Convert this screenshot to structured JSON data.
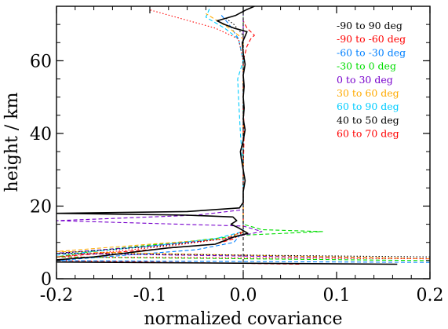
{
  "chart_data": {
    "type": "line",
    "title": "",
    "xlabel": "normalized covariance",
    "ylabel": "height / km",
    "xlim": [
      -0.2,
      0.2
    ],
    "ylim": [
      0,
      75
    ],
    "xticks": [
      -0.2,
      -0.1,
      0.0,
      0.1,
      0.2
    ],
    "xtick_labels": [
      "-0.2",
      "-0.1",
      "0.0",
      "0.1",
      "0.2"
    ],
    "yticks": [
      0,
      20,
      40,
      60
    ],
    "ytick_labels": [
      "0",
      "20",
      "40",
      "60"
    ],
    "grid": false,
    "legend_position": "top-right",
    "reference_line": {
      "x": 0.0,
      "style": "dashed",
      "color": "#000000"
    },
    "series": [
      {
        "name": "-90 to 90 deg",
        "color": "#000000",
        "style": "solid",
        "points": [
          [
            0.165,
            4.0
          ],
          [
            -0.2,
            4.6
          ],
          [
            -0.2,
            5.2
          ],
          [
            -0.16,
            6.0
          ],
          [
            -0.08,
            8.5
          ],
          [
            -0.03,
            9.5
          ],
          [
            -0.01,
            11.5
          ],
          [
            0.005,
            12.5
          ],
          [
            -0.005,
            14.0
          ],
          [
            -0.013,
            15.0
          ],
          [
            -0.007,
            16.0
          ],
          [
            -0.011,
            17.0
          ],
          [
            -0.06,
            17.5
          ],
          [
            -0.2,
            18.0
          ],
          [
            -0.06,
            18.5
          ],
          [
            -0.004,
            19.5
          ],
          [
            0.0,
            21.0
          ],
          [
            0.0,
            24.0
          ],
          [
            0.002,
            27.0
          ],
          [
            0.0,
            30.0
          ],
          [
            -0.002,
            33.0
          ],
          [
            -0.003,
            35.0
          ],
          [
            0.0,
            38.0
          ],
          [
            0.002,
            41.0
          ],
          [
            0.0,
            44.0
          ],
          [
            0.001,
            47.0
          ],
          [
            0.0,
            50.0
          ],
          [
            0.001,
            53.0
          ],
          [
            0.0,
            56.0
          ],
          [
            0.002,
            59.0
          ],
          [
            0.0,
            62.0
          ],
          [
            -0.001,
            65.0
          ],
          [
            0.004,
            68.0
          ],
          [
            -0.01,
            69.0
          ],
          [
            -0.02,
            70.0
          ],
          [
            -0.028,
            71.0
          ],
          [
            -0.008,
            72.5
          ],
          [
            0.003,
            74.0
          ],
          [
            0.012,
            75.0
          ]
        ]
      },
      {
        "name": "-90 to -60 deg",
        "color": "#ff0000",
        "style": "dashed",
        "points": [
          [
            0.06,
            4.0
          ],
          [
            -0.2,
            5.0
          ],
          [
            -0.2,
            6.0
          ],
          [
            -0.1,
            8.0
          ],
          [
            -0.03,
            9.5
          ],
          [
            -0.01,
            11.0
          ],
          [
            0.0,
            13.0
          ],
          [
            0.0,
            16.0
          ],
          [
            0.0,
            20.0
          ],
          [
            0.0,
            30.0
          ],
          [
            0.001,
            40.0
          ],
          [
            0.0,
            50.0
          ],
          [
            0.0,
            60.0
          ],
          [
            0.004,
            64.0
          ],
          [
            0.008,
            66.0
          ],
          [
            0.012,
            67.0
          ],
          [
            0.004,
            69.0
          ],
          [
            0.0,
            71.0
          ]
        ]
      },
      {
        "name": "-60 to -30 deg",
        "color": "#0080ff",
        "style": "dashed",
        "points": [
          [
            0.2,
            4.5
          ],
          [
            -0.2,
            5.0
          ],
          [
            -0.05,
            8.0
          ],
          [
            -0.01,
            10.0
          ],
          [
            0.0,
            13.0
          ],
          [
            0.0,
            20.0
          ],
          [
            0.0,
            30.0
          ],
          [
            0.0,
            40.0
          ],
          [
            0.0,
            50.0
          ],
          [
            0.0,
            60.0
          ],
          [
            -0.005,
            66.0
          ],
          [
            -0.015,
            70.0
          ],
          [
            -0.025,
            73.0
          ]
        ]
      },
      {
        "name": "-30 to 0 deg",
        "color": "#00dd00",
        "style": "dashed",
        "points": [
          [
            0.2,
            5.0
          ],
          [
            -0.2,
            6.0
          ],
          [
            -0.15,
            8.0
          ],
          [
            -0.05,
            10.5
          ],
          [
            0.0,
            12.0
          ],
          [
            0.085,
            13.0
          ],
          [
            0.02,
            13.5
          ],
          [
            0.0,
            15.0
          ],
          [
            0.0,
            20.0
          ],
          [
            0.0,
            30.0
          ],
          [
            0.0,
            40.0
          ],
          [
            0.0,
            50.0
          ],
          [
            0.0,
            60.0
          ],
          [
            0.0,
            70.0
          ],
          [
            0.0,
            75.0
          ]
        ]
      },
      {
        "name": "0 to 30 deg",
        "color": "#7700cc",
        "style": "dashed",
        "points": [
          [
            0.2,
            5.5
          ],
          [
            -0.2,
            7.0
          ],
          [
            -0.1,
            9.0
          ],
          [
            -0.02,
            11.0
          ],
          [
            0.02,
            13.0
          ],
          [
            0.0,
            14.5
          ],
          [
            -0.2,
            16.0
          ],
          [
            -0.05,
            17.5
          ],
          [
            0.0,
            19.0
          ],
          [
            0.0,
            30.0
          ],
          [
            0.0,
            40.0
          ],
          [
            0.0,
            50.0
          ],
          [
            0.0,
            60.0
          ],
          [
            0.0,
            70.0
          ],
          [
            0.0,
            75.0
          ]
        ]
      },
      {
        "name": "30 to 60 deg",
        "color": "#ffaa00",
        "style": "dashed",
        "points": [
          [
            0.2,
            5.5
          ],
          [
            -0.2,
            7.5
          ],
          [
            -0.1,
            9.5
          ],
          [
            -0.02,
            11.0
          ],
          [
            0.0,
            13.0
          ],
          [
            0.0,
            20.0
          ],
          [
            0.0,
            30.0
          ],
          [
            0.0,
            40.0
          ],
          [
            0.0,
            50.0
          ],
          [
            0.0,
            60.0
          ],
          [
            0.0,
            66.0
          ],
          [
            -0.015,
            69.0
          ],
          [
            -0.04,
            73.0
          ]
        ]
      },
      {
        "name": "60 to 90 deg",
        "color": "#00ccff",
        "style": "dashed",
        "points": [
          [
            -0.2,
            6.5
          ],
          [
            -0.1,
            9.0
          ],
          [
            -0.03,
            11.0
          ],
          [
            0.0,
            13.0
          ],
          [
            0.0,
            20.0
          ],
          [
            0.0,
            30.0
          ],
          [
            -0.003,
            40.0
          ],
          [
            -0.005,
            50.0
          ],
          [
            -0.006,
            55.0
          ],
          [
            0.0,
            60.0
          ],
          [
            -0.005,
            66.0
          ],
          [
            -0.02,
            69.0
          ],
          [
            -0.04,
            72.0
          ],
          [
            -0.035,
            75.0
          ]
        ]
      },
      {
        "name": "40 to 50 deg",
        "color": "#000000",
        "style": "dotted",
        "points": [
          [
            0.2,
            6.0
          ],
          [
            -0.2,
            7.0
          ],
          [
            -0.09,
            9.0
          ],
          [
            -0.02,
            11.0
          ],
          [
            0.0,
            13.0
          ],
          [
            0.0,
            20.0
          ],
          [
            0.0,
            30.0
          ],
          [
            0.0,
            40.0
          ],
          [
            0.0,
            50.0
          ],
          [
            0.0,
            60.0
          ],
          [
            0.0,
            67.0
          ],
          [
            -0.01,
            70.0
          ],
          [
            -0.02,
            72.0
          ]
        ]
      },
      {
        "name": "60 to 70 deg",
        "color": "#ff0000",
        "style": "dotted",
        "points": [
          [
            0.2,
            5.5
          ],
          [
            -0.2,
            6.0
          ],
          [
            -0.08,
            9.0
          ],
          [
            -0.02,
            11.0
          ],
          [
            0.0,
            13.0
          ],
          [
            0.0,
            20.0
          ],
          [
            0.0,
            30.0
          ],
          [
            0.0,
            40.0
          ],
          [
            0.0,
            50.0
          ],
          [
            0.0,
            60.0
          ],
          [
            -0.005,
            66.0
          ],
          [
            -0.03,
            69.0
          ],
          [
            -0.1,
            74.0
          ]
        ]
      }
    ]
  }
}
